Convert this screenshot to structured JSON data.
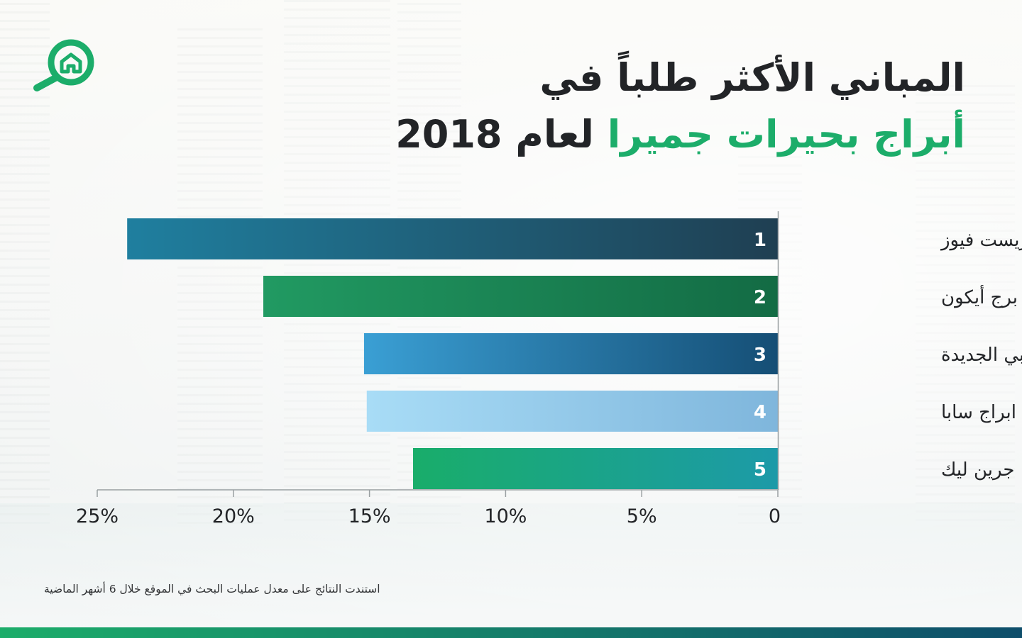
{
  "title": {
    "line1": "المباني الأكثر طلباً في",
    "line2_accent": "أبراج بحيرات جميرا",
    "line2_rest": "لعام 2018"
  },
  "footnote": "استندت النتائج على معدل عمليات البحث في الموقع خلال 6 أشهر الماضية",
  "logo": {
    "icon": "house-search-icon",
    "color": "#1cad6a"
  },
  "colors": {
    "accent": "#1cad6a",
    "text": "#222427",
    "bottom_bar": [
      "#1cad6a",
      "#0e4e6b"
    ]
  },
  "chart_data": {
    "type": "bar",
    "orientation": "horizontal",
    "x_direction": "right-to-left",
    "categories": [
      "جولد كريست فيوز",
      "برج أيكون",
      "بوابة دبي الجديدة",
      "ابراج سابا",
      "جرين ليك"
    ],
    "ranks": [
      "1",
      "2",
      "3",
      "4",
      "5"
    ],
    "values": [
      23.9,
      18.9,
      15.2,
      15.1,
      13.4
    ],
    "xlim": [
      0,
      25
    ],
    "ticks": [
      0,
      5,
      10,
      15,
      20,
      25
    ],
    "tick_labels": [
      "0",
      "5%",
      "10%",
      "15%",
      "20%",
      "25%"
    ],
    "bar_colors": [
      [
        "#1f3f52",
        "#1f7f9f"
      ],
      [
        "#136b44",
        "#219a62"
      ],
      [
        "#154e75",
        "#3a9fd4"
      ],
      [
        "#7fb6dc",
        "#a8dcf6"
      ],
      [
        "#1c9aa8",
        "#19ad6a"
      ]
    ],
    "grid": false
  }
}
